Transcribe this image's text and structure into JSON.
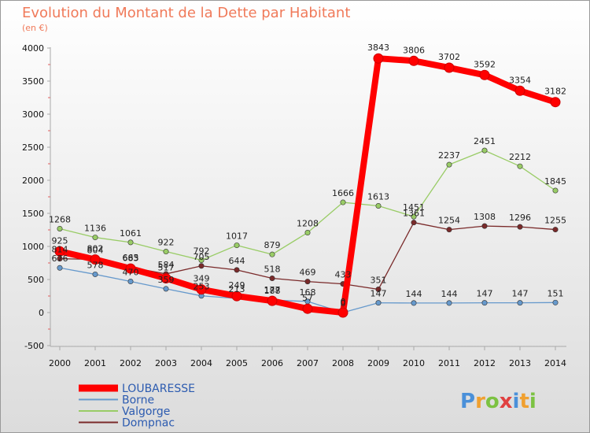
{
  "chart_data": {
    "type": "line",
    "title": "Evolution du Montant de la Dette par Habitant",
    "subtitle": "(en €)",
    "xlabel": "",
    "ylabel": "",
    "ylim": [
      -500,
      4000
    ],
    "yticks": [
      -500,
      0,
      500,
      1000,
      1500,
      2000,
      2500,
      3000,
      3500,
      4000
    ],
    "categories": [
      "2000",
      "2001",
      "2002",
      "2003",
      "2004",
      "2005",
      "2006",
      "2007",
      "2008",
      "2009",
      "2010",
      "2011",
      "2012",
      "2013",
      "2014"
    ],
    "grid": false,
    "legend": "bottom-left",
    "series": [
      {
        "name": "LOUBARESSE",
        "color": "#ff0000",
        "values": [
          925,
          802,
          665,
          517,
          349,
          249,
          177,
          57,
          0,
          3843,
          3806,
          3702,
          3592,
          3354,
          3182
        ]
      },
      {
        "name": "Borne",
        "color": "#6699cc",
        "values": [
          676,
          578,
          470,
          359,
          253,
          213,
          188,
          168,
          0,
          147,
          144,
          144,
          147,
          147,
          151
        ]
      },
      {
        "name": "Valgorge",
        "color": "#99cc66",
        "values": [
          1268,
          1136,
          1061,
          922,
          792,
          1017,
          879,
          1208,
          1666,
          1613,
          1451,
          2237,
          2451,
          2212,
          1845
        ]
      },
      {
        "name": "Dompnac",
        "color": "#7a2a2a",
        "values": [
          814,
          804,
          683,
          584,
          705,
          644,
          518,
          469,
          433,
          351,
          1361,
          1254,
          1308,
          1296,
          1255
        ]
      }
    ]
  },
  "logo": {
    "text": "Proxiti"
  }
}
